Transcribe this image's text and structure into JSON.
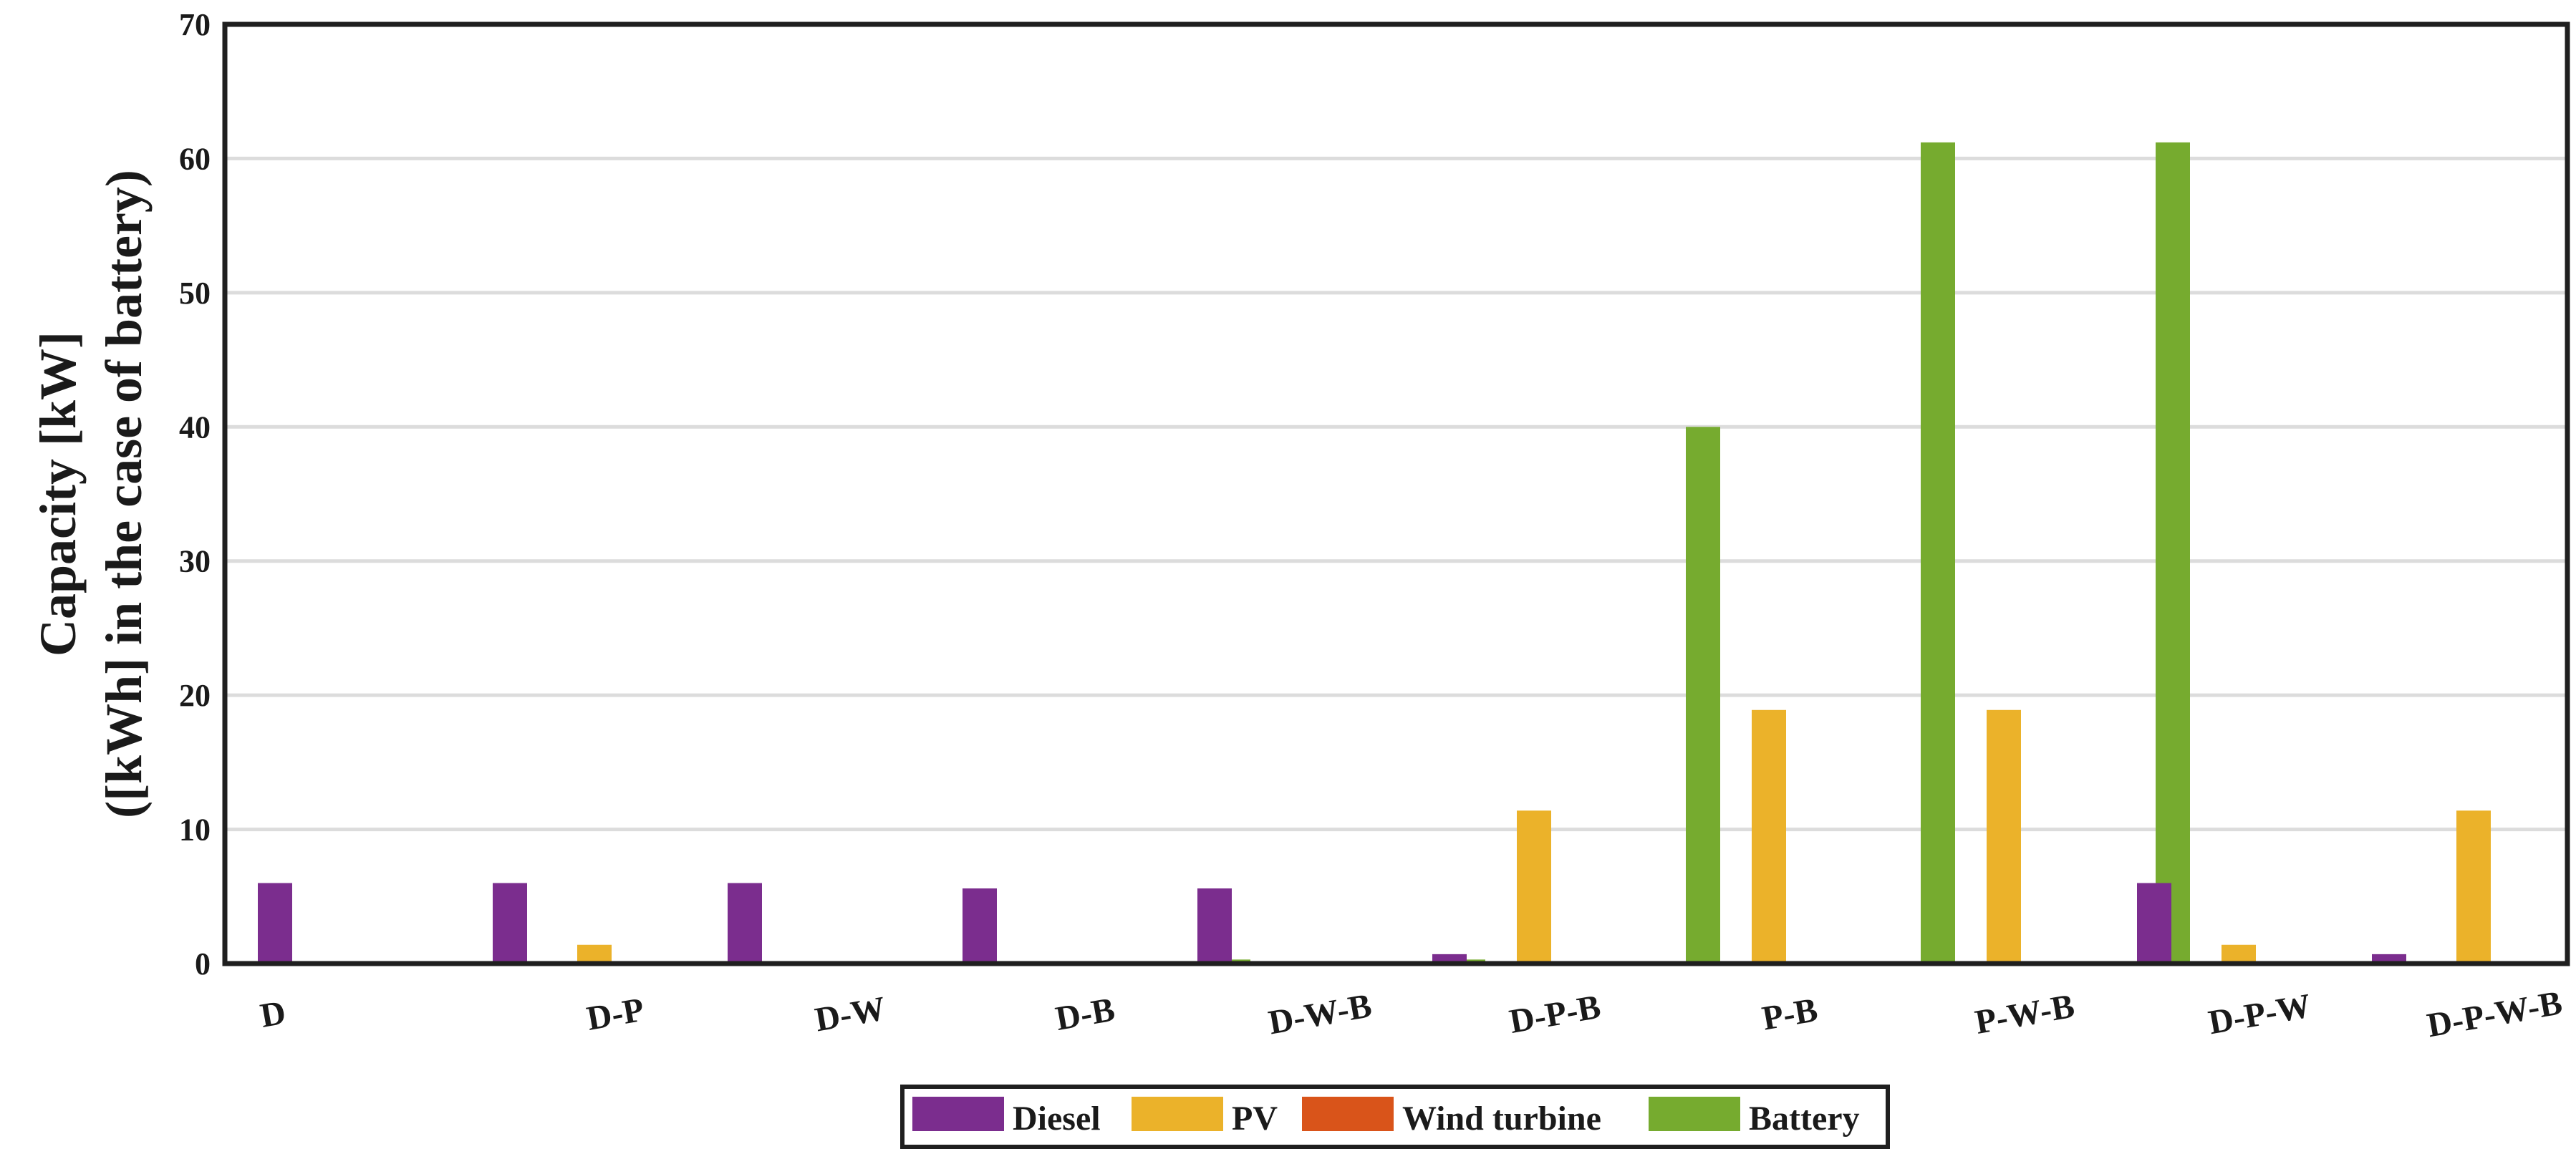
{
  "chart_data": {
    "type": "bar",
    "title": "",
    "xlabel": "",
    "ylabel_lines": [
      "Capacity [kW]",
      "([kWh] in the case of battery)"
    ],
    "ylim": [
      0,
      70
    ],
    "yticks": [
      0,
      10,
      20,
      30,
      40,
      50,
      60,
      70
    ],
    "grid": true,
    "legend_position": "bottom-center",
    "categories": [
      "D",
      "D-P",
      "D-W",
      "D-B",
      "D-W-B",
      "D-P-B",
      "P-B",
      "P-W-B",
      "D-P-W",
      "D-P-W-B"
    ],
    "series": [
      {
        "name": "Diesel",
        "color": "#7b2d8e",
        "values": [
          6,
          6,
          6,
          5.6,
          5.6,
          0.7,
          0,
          0,
          6,
          0.7
        ]
      },
      {
        "name": "PV",
        "color": "#ebb22a",
        "values": [
          0,
          1.4,
          0,
          0,
          0,
          11.4,
          18.9,
          18.9,
          1.4,
          11.4
        ]
      },
      {
        "name": "Wind turbine",
        "color": "#d9541a",
        "values": [
          0,
          0,
          0,
          0,
          0,
          0,
          0,
          0,
          0,
          0
        ]
      },
      {
        "name": "Battery",
        "color": "#76ab2f",
        "values": [
          0,
          0,
          0,
          0.3,
          0.3,
          40,
          61.2,
          61.2,
          0,
          40
        ]
      }
    ]
  }
}
